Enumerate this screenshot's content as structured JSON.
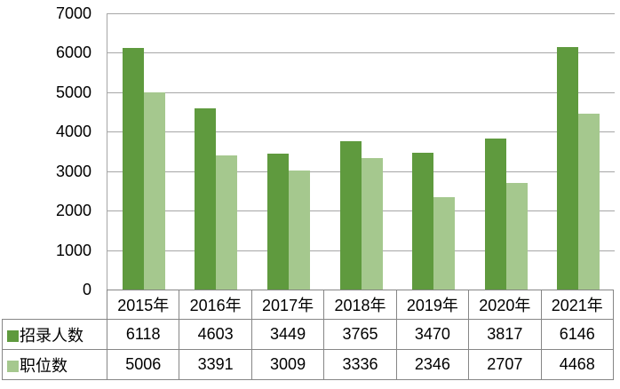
{
  "chart_data": {
    "type": "bar",
    "title": "",
    "xlabel": "",
    "ylabel": "",
    "categories": [
      "2015年",
      "2016年",
      "2017年",
      "2018年",
      "2019年",
      "2020年",
      "2021年"
    ],
    "series": [
      {
        "name": "招录人数",
        "color": "#5f9a3e",
        "values": [
          6118,
          4603,
          3449,
          3765,
          3470,
          3817,
          6146
        ]
      },
      {
        "name": "职位数",
        "color": "#a5c88e",
        "values": [
          5006,
          3391,
          3009,
          3336,
          2346,
          2707,
          4468
        ]
      }
    ],
    "ylim": [
      0,
      7000
    ],
    "yticks": [
      0,
      1000,
      2000,
      3000,
      4000,
      5000,
      6000,
      7000
    ],
    "grid": "horizontal",
    "legend_position": "data-table-left-column",
    "colors": {
      "gridline": "#a6a6a6",
      "axis_line": "#a6a6a6",
      "table_border": "#868686",
      "text": "#000000",
      "background": "#ffffff"
    }
  }
}
